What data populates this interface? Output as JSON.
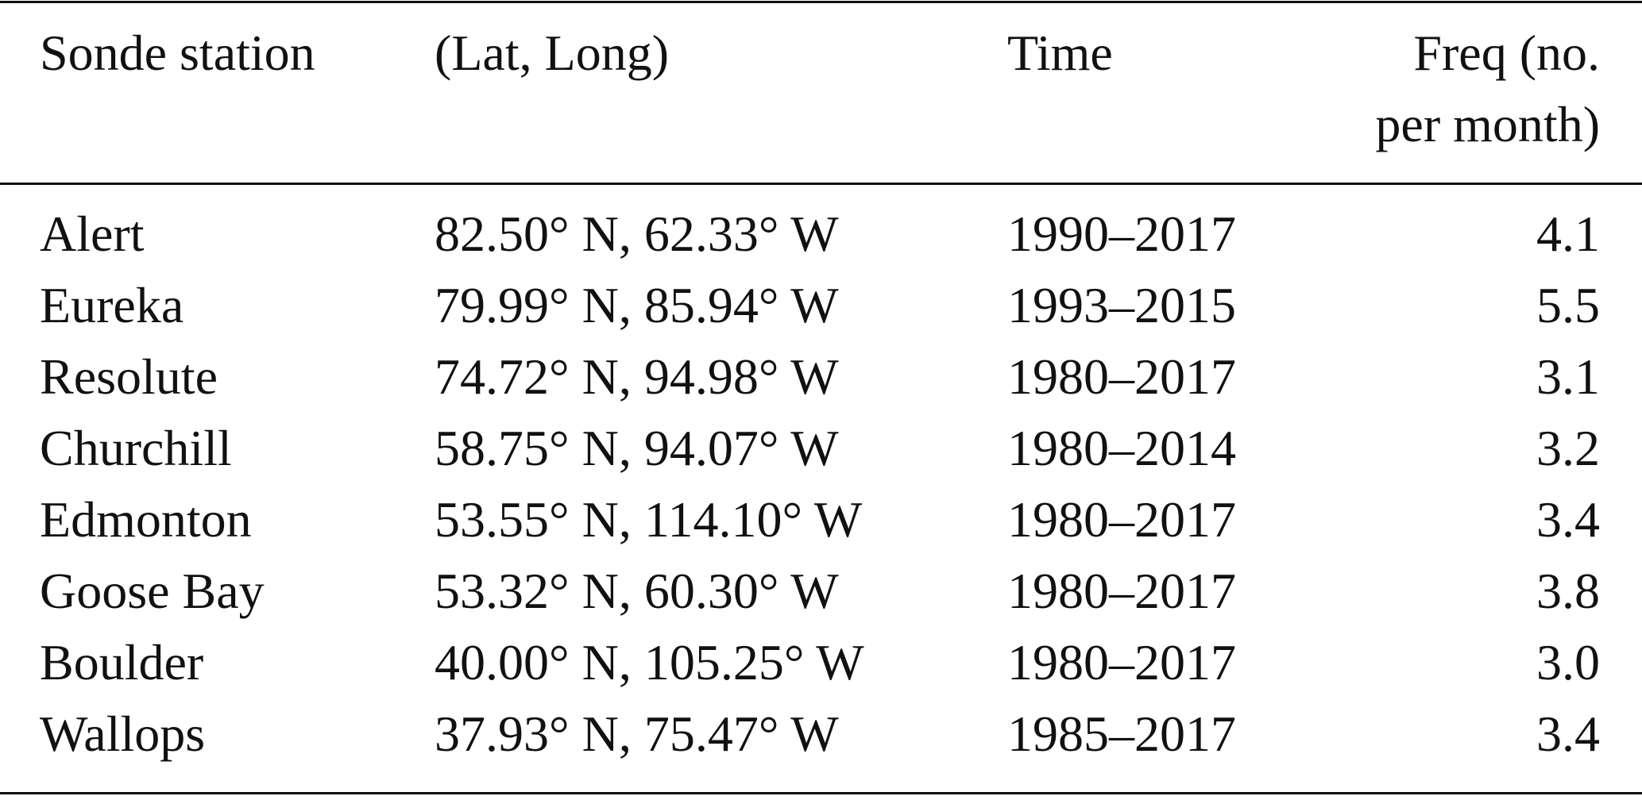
{
  "table": {
    "header": [
      "Sonde station",
      "(Lat, Long)",
      "Time",
      "Freq (no.\nper month)"
    ],
    "rows": [
      [
        "Alert",
        "82.50° N, 62.33° W",
        "1990–2017",
        "4.1"
      ],
      [
        "Eureka",
        "79.99° N, 85.94° W",
        "1993–2015",
        "5.5"
      ],
      [
        "Resolute",
        "74.72° N, 94.98° W",
        "1980–2017",
        "3.1"
      ],
      [
        "Churchill",
        "58.75° N, 94.07° W",
        "1980–2014",
        "3.2"
      ],
      [
        "Edmonton",
        "53.55° N, 114.10° W",
        "1980–2017",
        "3.4"
      ],
      [
        "Goose Bay",
        "53.32° N, 60.30° W",
        "1980–2017",
        "3.8"
      ],
      [
        "Boulder",
        "40.00° N, 105.25° W",
        "1980–2017",
        "3.0"
      ],
      [
        "Wallops",
        "37.93° N, 75.47° W",
        "1985–2017",
        "3.4"
      ]
    ]
  }
}
